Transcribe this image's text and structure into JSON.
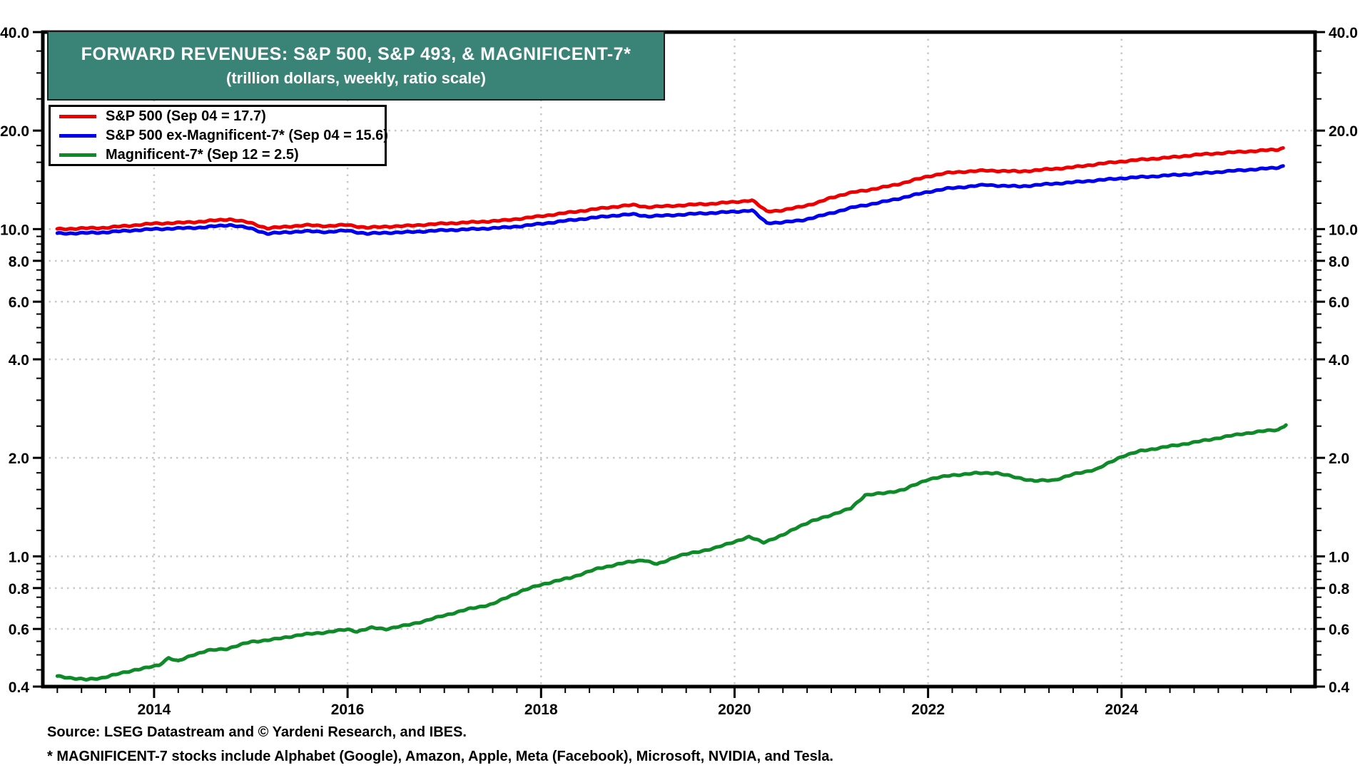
{
  "header": {
    "title_line1": "FORWARD REVENUES: S&P 500, S&P 493, & MAGNIFICENT-7*",
    "title_line2": "(trillion dollars, weekly, ratio scale)",
    "box_color": "#3A8477"
  },
  "legend": {
    "items": [
      {
        "id": "sp500",
        "label": "S&P 500 (Sep 04 = 17.7)",
        "color": "#EE0000"
      },
      {
        "id": "sp493",
        "label": "S&P 500 ex-Magnificent-7* (Sep 04 = 15.6)",
        "color": "#0000EE"
      },
      {
        "id": "mag7",
        "label": "Magnificent-7* (Sep 12 = 2.5)",
        "color": "#0E8A28"
      }
    ]
  },
  "footer": {
    "source_line": "Source: LSEG Datastream and © Yardeni Research, and IBES.",
    "footnote_line": "* MAGNIFICENT-7 stocks include Alphabet (Google), Amazon, Apple, Meta (Facebook), Microsoft, NVIDIA, and Tesla."
  },
  "chart_data": {
    "type": "line",
    "title": "FORWARD REVENUES: S&P 500, S&P 493, & MAGNIFICENT-7*",
    "subtitle": "(trillion dollars, weekly, ratio scale)",
    "y_scale": "log",
    "y_range": [
      0.4,
      40
    ],
    "x_range": [
      2012.85,
      2026.0
    ],
    "grid": true,
    "grid_color": "#C8C8C8",
    "legend_position": "top-left",
    "y_tick_values": [
      40,
      20,
      10,
      8,
      6,
      4,
      2,
      1,
      0.8,
      0.6,
      0.4
    ],
    "y_tick_labels": [
      "40.0",
      "20.0",
      "10.0",
      "8.0",
      "6.0",
      "4.0",
      "2.0",
      "1.0",
      "0.8",
      "0.6",
      "0.4"
    ],
    "y_minor_ticks": [
      0.45,
      0.5,
      0.55,
      0.65,
      0.7,
      0.75,
      0.85,
      0.9,
      0.95,
      1.2,
      1.4,
      1.6,
      1.8,
      2.5,
      3,
      3.5,
      4.5,
      5,
      5.5,
      6.5,
      7,
      7.5,
      8.5,
      9,
      9.5,
      12,
      14,
      16,
      18,
      25,
      30,
      35
    ],
    "y_gridline_values": [
      20,
      10,
      8,
      6,
      4,
      2,
      1,
      0.8,
      0.6
    ],
    "x_tick_years": [
      2014,
      2016,
      2018,
      2020,
      2022,
      2024
    ],
    "x_gridline_years": [
      2014,
      2016,
      2018,
      2020,
      2022,
      2024
    ],
    "x_minor_tick_step_years": 0.25,
    "series": [
      {
        "id": "sp500",
        "name": "S&P 500 (Sep 04 = 17.7)",
        "color": "#EE0000",
        "points": [
          [
            2013.0,
            10.0
          ],
          [
            2013.25,
            10.05
          ],
          [
            2013.5,
            10.1
          ],
          [
            2013.75,
            10.25
          ],
          [
            2014.0,
            10.4
          ],
          [
            2014.25,
            10.45
          ],
          [
            2014.5,
            10.55
          ],
          [
            2014.78,
            10.72
          ],
          [
            2015.0,
            10.45
          ],
          [
            2015.17,
            10.05
          ],
          [
            2015.4,
            10.2
          ],
          [
            2015.6,
            10.28
          ],
          [
            2015.8,
            10.22
          ],
          [
            2016.0,
            10.3
          ],
          [
            2016.2,
            10.1
          ],
          [
            2016.4,
            10.18
          ],
          [
            2016.6,
            10.22
          ],
          [
            2016.8,
            10.32
          ],
          [
            2017.0,
            10.4
          ],
          [
            2017.3,
            10.5
          ],
          [
            2017.6,
            10.62
          ],
          [
            2017.8,
            10.78
          ],
          [
            2018.0,
            10.95
          ],
          [
            2018.25,
            11.2
          ],
          [
            2018.5,
            11.45
          ],
          [
            2018.75,
            11.7
          ],
          [
            2018.95,
            11.85
          ],
          [
            2019.1,
            11.68
          ],
          [
            2019.3,
            11.75
          ],
          [
            2019.5,
            11.85
          ],
          [
            2019.75,
            11.95
          ],
          [
            2020.0,
            12.1
          ],
          [
            2020.18,
            12.25
          ],
          [
            2020.33,
            11.35
          ],
          [
            2020.5,
            11.4
          ],
          [
            2020.7,
            11.75
          ],
          [
            2020.85,
            12.0
          ],
          [
            2021.0,
            12.5
          ],
          [
            2021.25,
            13.0
          ],
          [
            2021.5,
            13.35
          ],
          [
            2021.75,
            13.85
          ],
          [
            2022.0,
            14.5
          ],
          [
            2022.2,
            14.85
          ],
          [
            2022.4,
            15.0
          ],
          [
            2022.6,
            15.1
          ],
          [
            2022.8,
            15.05
          ],
          [
            2022.95,
            15.0
          ],
          [
            2023.2,
            15.2
          ],
          [
            2023.5,
            15.45
          ],
          [
            2023.75,
            15.8
          ],
          [
            2024.0,
            16.1
          ],
          [
            2024.25,
            16.35
          ],
          [
            2024.5,
            16.55
          ],
          [
            2024.75,
            16.85
          ],
          [
            2025.0,
            17.05
          ],
          [
            2025.2,
            17.2
          ],
          [
            2025.4,
            17.35
          ],
          [
            2025.55,
            17.45
          ],
          [
            2025.62,
            17.5
          ],
          [
            2025.67,
            17.7
          ]
        ]
      },
      {
        "id": "sp493",
        "name": "S&P 500 ex-Magnificent-7* (Sep 04 = 15.6)",
        "color": "#0000EE",
        "points": [
          [
            2013.0,
            9.7
          ],
          [
            2013.25,
            9.72
          ],
          [
            2013.5,
            9.78
          ],
          [
            2013.75,
            9.9
          ],
          [
            2014.0,
            10.0
          ],
          [
            2014.25,
            10.05
          ],
          [
            2014.5,
            10.12
          ],
          [
            2014.78,
            10.3
          ],
          [
            2015.0,
            10.05
          ],
          [
            2015.17,
            9.68
          ],
          [
            2015.4,
            9.8
          ],
          [
            2015.6,
            9.85
          ],
          [
            2015.8,
            9.8
          ],
          [
            2016.0,
            9.9
          ],
          [
            2016.2,
            9.68
          ],
          [
            2016.4,
            9.75
          ],
          [
            2016.6,
            9.78
          ],
          [
            2016.8,
            9.85
          ],
          [
            2017.0,
            9.92
          ],
          [
            2017.3,
            10.0
          ],
          [
            2017.6,
            10.1
          ],
          [
            2017.8,
            10.22
          ],
          [
            2018.0,
            10.38
          ],
          [
            2018.25,
            10.6
          ],
          [
            2018.5,
            10.8
          ],
          [
            2018.75,
            11.0
          ],
          [
            2018.95,
            11.1
          ],
          [
            2019.1,
            10.95
          ],
          [
            2019.3,
            11.0
          ],
          [
            2019.5,
            11.1
          ],
          [
            2019.75,
            11.2
          ],
          [
            2020.0,
            11.3
          ],
          [
            2020.18,
            11.42
          ],
          [
            2020.33,
            10.45
          ],
          [
            2020.5,
            10.48
          ],
          [
            2020.7,
            10.65
          ],
          [
            2020.85,
            10.9
          ],
          [
            2021.0,
            11.2
          ],
          [
            2021.25,
            11.7
          ],
          [
            2021.5,
            12.05
          ],
          [
            2021.75,
            12.5
          ],
          [
            2022.0,
            13.0
          ],
          [
            2022.2,
            13.3
          ],
          [
            2022.4,
            13.48
          ],
          [
            2022.6,
            13.65
          ],
          [
            2022.8,
            13.55
          ],
          [
            2022.95,
            13.5
          ],
          [
            2023.2,
            13.7
          ],
          [
            2023.5,
            13.9
          ],
          [
            2023.75,
            14.1
          ],
          [
            2024.0,
            14.3
          ],
          [
            2024.25,
            14.45
          ],
          [
            2024.5,
            14.6
          ],
          [
            2024.75,
            14.75
          ],
          [
            2025.0,
            14.95
          ],
          [
            2025.2,
            15.1
          ],
          [
            2025.4,
            15.25
          ],
          [
            2025.55,
            15.35
          ],
          [
            2025.62,
            15.42
          ],
          [
            2025.67,
            15.6
          ]
        ]
      },
      {
        "id": "mag7",
        "name": "Magnificent-7* (Sep 12 = 2.5)",
        "color": "#0E8A28",
        "points": [
          [
            2013.0,
            0.43
          ],
          [
            2013.15,
            0.425
          ],
          [
            2013.3,
            0.42
          ],
          [
            2013.45,
            0.425
          ],
          [
            2013.6,
            0.435
          ],
          [
            2013.8,
            0.45
          ],
          [
            2013.95,
            0.458
          ],
          [
            2014.05,
            0.465
          ],
          [
            2014.15,
            0.49
          ],
          [
            2014.25,
            0.478
          ],
          [
            2014.4,
            0.5
          ],
          [
            2014.55,
            0.515
          ],
          [
            2014.75,
            0.522
          ],
          [
            2015.0,
            0.548
          ],
          [
            2015.25,
            0.558
          ],
          [
            2015.5,
            0.575
          ],
          [
            2015.75,
            0.585
          ],
          [
            2016.0,
            0.598
          ],
          [
            2016.1,
            0.59
          ],
          [
            2016.25,
            0.605
          ],
          [
            2016.4,
            0.6
          ],
          [
            2016.6,
            0.615
          ],
          [
            2016.8,
            0.635
          ],
          [
            2017.0,
            0.66
          ],
          [
            2017.25,
            0.69
          ],
          [
            2017.5,
            0.715
          ],
          [
            2017.65,
            0.75
          ],
          [
            2017.78,
            0.78
          ],
          [
            2018.0,
            0.82
          ],
          [
            2018.3,
            0.86
          ],
          [
            2018.6,
            0.92
          ],
          [
            2018.9,
            0.96
          ],
          [
            2019.05,
            0.975
          ],
          [
            2019.2,
            0.945
          ],
          [
            2019.4,
            1.0
          ],
          [
            2019.6,
            1.03
          ],
          [
            2019.8,
            1.06
          ],
          [
            2020.0,
            1.11
          ],
          [
            2020.15,
            1.145
          ],
          [
            2020.3,
            1.105
          ],
          [
            2020.5,
            1.16
          ],
          [
            2020.65,
            1.23
          ],
          [
            2020.8,
            1.28
          ],
          [
            2021.0,
            1.34
          ],
          [
            2021.2,
            1.4
          ],
          [
            2021.35,
            1.54
          ],
          [
            2021.55,
            1.56
          ],
          [
            2021.75,
            1.6
          ],
          [
            2022.0,
            1.72
          ],
          [
            2022.25,
            1.77
          ],
          [
            2022.5,
            1.795
          ],
          [
            2022.7,
            1.8
          ],
          [
            2022.9,
            1.745
          ],
          [
            2023.1,
            1.7
          ],
          [
            2023.3,
            1.71
          ],
          [
            2023.5,
            1.78
          ],
          [
            2023.75,
            1.85
          ],
          [
            2024.0,
            2.02
          ],
          [
            2024.2,
            2.1
          ],
          [
            2024.5,
            2.17
          ],
          [
            2024.75,
            2.23
          ],
          [
            2025.0,
            2.3
          ],
          [
            2025.25,
            2.37
          ],
          [
            2025.5,
            2.42
          ],
          [
            2025.62,
            2.44
          ],
          [
            2025.7,
            2.52
          ]
        ]
      }
    ]
  }
}
